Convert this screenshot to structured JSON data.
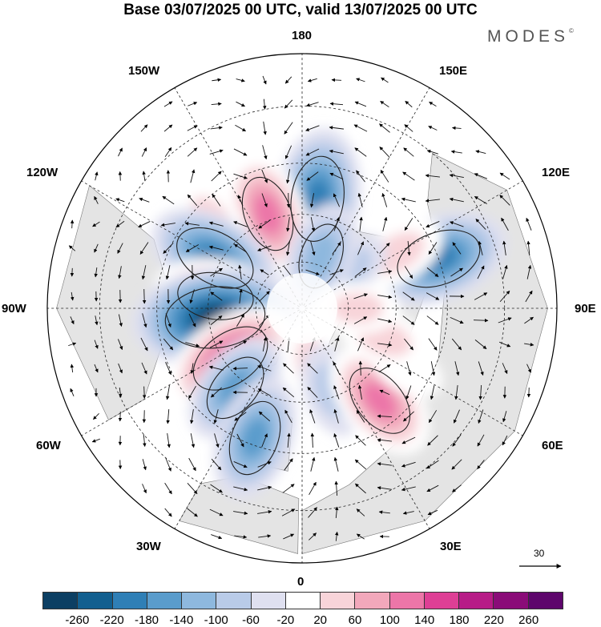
{
  "title": "Base 03/07/2025 00 UTC, valid 13/07/2025 00 UTC",
  "brand": {
    "name": "MODES",
    "mark": "©"
  },
  "longitude_labels": {
    "top": "180",
    "bottom": "0",
    "left": "90W",
    "right": "90E",
    "upper_left": "150W",
    "upper_right": "150E",
    "mid_left_upper": "120W",
    "mid_right_upper": "120E",
    "mid_left_lower": "60W",
    "mid_right_lower": "60E",
    "lower_left": "30W",
    "lower_right": "30E"
  },
  "reference_vector": {
    "label": "30"
  },
  "colorbar": {
    "ticks": [
      "-260",
      "-220",
      "-180",
      "-140",
      "-100",
      "-60",
      "-20",
      "20",
      "60",
      "100",
      "140",
      "180",
      "220",
      "260"
    ],
    "colors": [
      "#0c3f63",
      "#125f8f",
      "#2f7fb6",
      "#5a9ccc",
      "#8eb8de",
      "#b9cbe8",
      "#dfe0f0",
      "#ffffff",
      "#f8d4d9",
      "#f2a8bb",
      "#ec76a8",
      "#de3f95",
      "#b71c87",
      "#8a0c78",
      "#5e066c"
    ]
  },
  "map": {
    "projection": "north-polar-stereographic",
    "land_color": "#e4e4e4",
    "graticule": "dashed",
    "anomalies": [
      {
        "lon": 172,
        "lat": 55,
        "value": -200
      },
      {
        "lon": 200,
        "lat": 58,
        "value": 160
      },
      {
        "lon": 225,
        "lat": 50,
        "value": 60
      },
      {
        "lon": 240,
        "lat": 58,
        "value": -190
      },
      {
        "lon": 262,
        "lat": 62,
        "value": 160
      },
      {
        "lon": 276,
        "lat": 62,
        "value": -260
      },
      {
        "lon": 305,
        "lat": 62,
        "value": 190
      },
      {
        "lon": 320,
        "lat": 57,
        "value": -140
      },
      {
        "lon": 340,
        "lat": 47,
        "value": -160
      },
      {
        "lon": 10,
        "lat": 72,
        "value": 60
      },
      {
        "lon": 20,
        "lat": 62,
        "value": -80
      },
      {
        "lon": 40,
        "lat": 52,
        "value": 160
      },
      {
        "lon": 60,
        "lat": 52,
        "value": 40
      },
      {
        "lon": 70,
        "lat": 62,
        "value": 80
      },
      {
        "lon": 110,
        "lat": 45,
        "value": -200
      },
      {
        "lon": 120,
        "lat": 55,
        "value": 90
      },
      {
        "lon": 130,
        "lat": 70,
        "value": -60
      },
      {
        "lon": 160,
        "lat": 72,
        "value": -120
      },
      {
        "lon": 90,
        "lat": 72,
        "value": 60
      }
    ]
  }
}
